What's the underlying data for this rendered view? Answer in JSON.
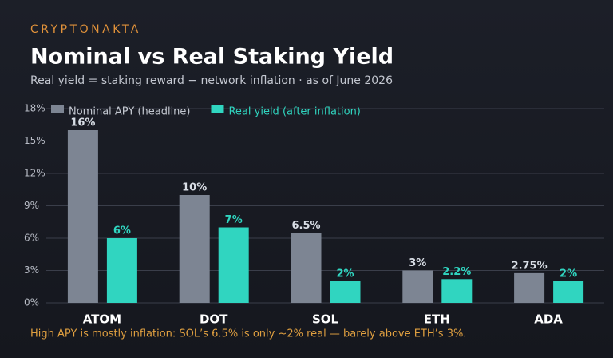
{
  "brand": "CRYPTONAKTA",
  "chart_data": {
    "type": "bar",
    "title": "Nominal vs Real Staking Yield",
    "subtitle": "Real yield = staking reward − network inflation · as of June 2026",
    "categories": [
      "ATOM",
      "DOT",
      "SOL",
      "ETH",
      "ADA"
    ],
    "series": [
      {
        "name": "Nominal APY (headline)",
        "color": "#7d8593",
        "values": [
          16,
          10,
          6.5,
          3,
          2.75
        ],
        "value_labels": [
          "16%",
          "10%",
          "6.5%",
          "3%",
          "2.75%"
        ]
      },
      {
        "name": "Real yield (after inflation)",
        "color": "#30d5c0",
        "values": [
          6,
          7,
          2,
          2.2,
          2
        ],
        "value_labels": [
          "6%",
          "7%",
          "2%",
          "2.2%",
          "2%"
        ]
      }
    ],
    "ylim": [
      0,
      18
    ],
    "yticks": [
      {
        "value": 0,
        "label": "0%"
      },
      {
        "value": 3,
        "label": "3%"
      },
      {
        "value": 6,
        "label": "6%"
      },
      {
        "value": 9,
        "label": "9%"
      },
      {
        "value": 12,
        "label": "12%"
      },
      {
        "value": 15,
        "label": "15%"
      },
      {
        "value": 18,
        "label": "18%"
      }
    ],
    "grid": true,
    "legend": "top-left",
    "annotation": "High APY is mostly inflation: SOL’s 6.5% is only ~2% real — barely above ETH’s 3%."
  }
}
